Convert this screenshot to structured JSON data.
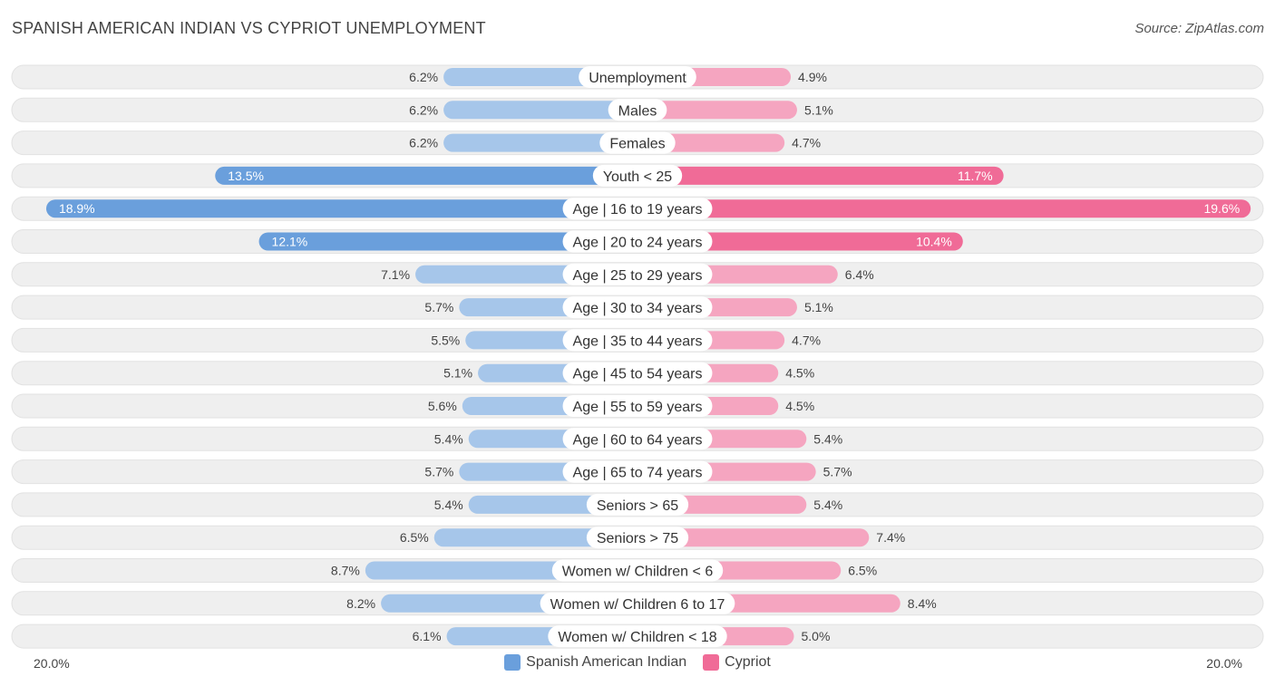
{
  "header": {
    "title": "SPANISH AMERICAN INDIAN VS CYPRIOT UNEMPLOYMENT",
    "source": "Source: ZipAtlas.com"
  },
  "axis": {
    "left_label": "20.0%",
    "right_label": "20.0%"
  },
  "legend": {
    "left_label": "Spanish American Indian",
    "right_label": "Cypriot"
  },
  "colors": {
    "left_strong": "#6a9fdc",
    "left_light": "#a6c6ea",
    "right_strong": "#f06b97",
    "right_light": "#f5a5c0",
    "track": "#efefef"
  },
  "chart_data": {
    "type": "bar",
    "orientation": "diverging-horizontal",
    "title": "SPANISH AMERICAN INDIAN VS CYPRIOT UNEMPLOYMENT",
    "xlim": [
      0,
      20
    ],
    "unit": "%",
    "categories": [
      "Unemployment",
      "Males",
      "Females",
      "Youth < 25",
      "Age | 16 to 19 years",
      "Age | 20 to 24 years",
      "Age | 25 to 29 years",
      "Age | 30 to 34 years",
      "Age | 35 to 44 years",
      "Age | 45 to 54 years",
      "Age | 55 to 59 years",
      "Age | 60 to 64 years",
      "Age | 65 to 74 years",
      "Seniors > 65",
      "Seniors > 75",
      "Women w/ Children < 6",
      "Women w/ Children 6 to 17",
      "Women w/ Children < 18"
    ],
    "series": [
      {
        "name": "Spanish American Indian",
        "values": [
          6.2,
          6.2,
          6.2,
          13.5,
          18.9,
          12.1,
          7.1,
          5.7,
          5.5,
          5.1,
          5.6,
          5.4,
          5.7,
          5.4,
          6.5,
          8.7,
          8.2,
          6.1
        ],
        "labels": [
          "6.2%",
          "6.2%",
          "6.2%",
          "13.5%",
          "18.9%",
          "12.1%",
          "7.1%",
          "5.7%",
          "5.5%",
          "5.1%",
          "5.6%",
          "5.4%",
          "5.7%",
          "5.4%",
          "6.5%",
          "8.7%",
          "8.2%",
          "6.1%"
        ]
      },
      {
        "name": "Cypriot",
        "values": [
          4.9,
          5.1,
          4.7,
          11.7,
          19.6,
          10.4,
          6.4,
          5.1,
          4.7,
          4.5,
          4.5,
          5.4,
          5.7,
          5.4,
          7.4,
          6.5,
          8.4,
          5.0
        ],
        "labels": [
          "4.9%",
          "5.1%",
          "4.7%",
          "11.7%",
          "19.6%",
          "10.4%",
          "6.4%",
          "5.1%",
          "4.7%",
          "4.5%",
          "4.5%",
          "5.4%",
          "5.7%",
          "5.4%",
          "7.4%",
          "6.5%",
          "8.4%",
          "5.0%"
        ]
      }
    ],
    "legend_position": "bottom-center"
  }
}
